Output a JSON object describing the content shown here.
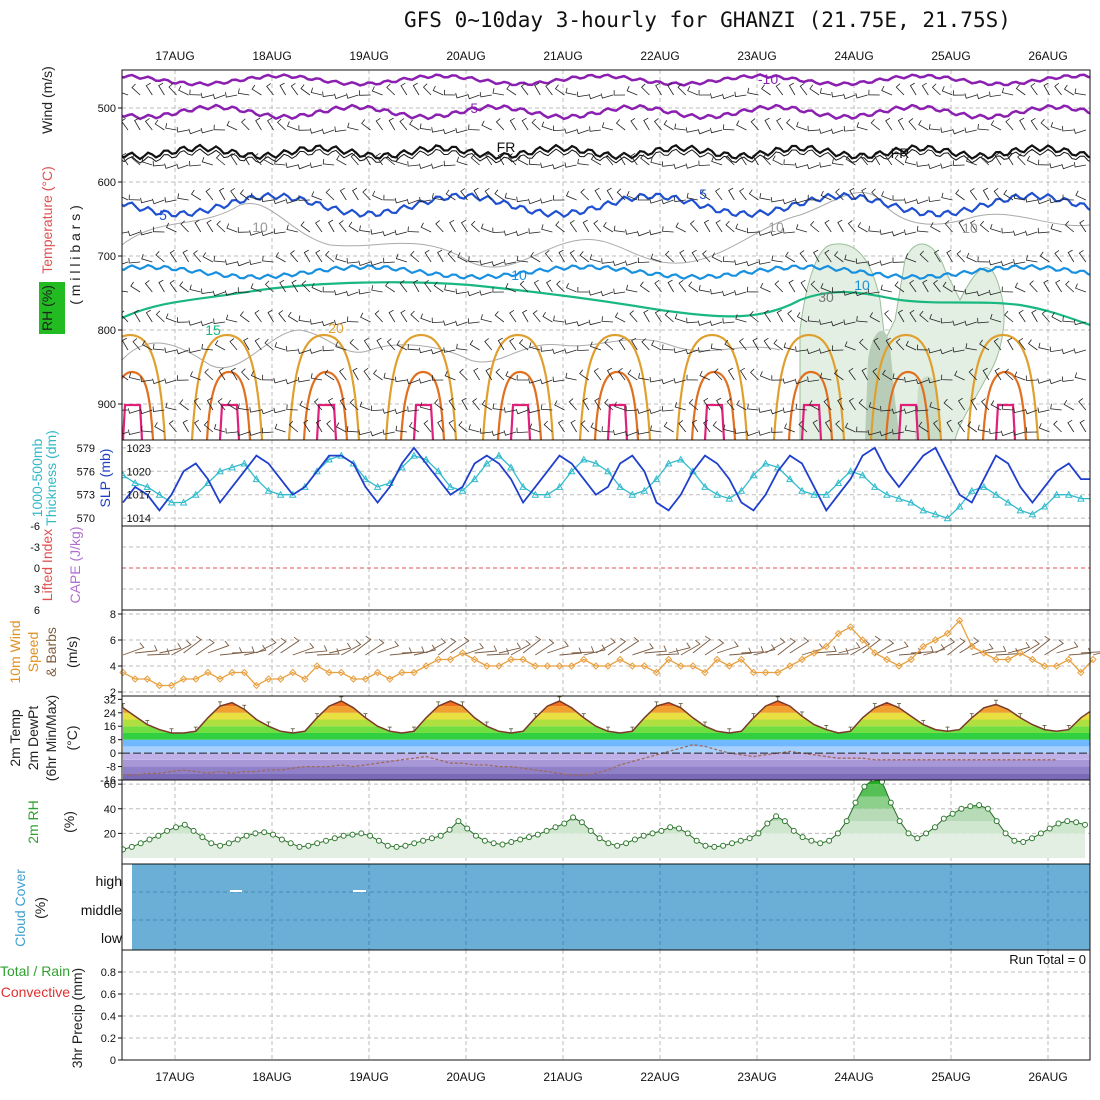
{
  "title": "GFS 0~10day 3-hourly for GHANZI (21.75E, 21.75S)",
  "dates": [
    "17AUG",
    "18AUG",
    "19AUG",
    "20AUG",
    "21AUG",
    "22AUG",
    "23AUG",
    "24AUG",
    "25AUG",
    "26AUG"
  ],
  "panels": {
    "upper": {
      "ylabels": [
        {
          "text": "Wind (m/s)",
          "color": "#222222"
        },
        {
          "text": "Temperature (°C)",
          "color": "#e05050"
        },
        {
          "text": "RH (%)",
          "color": "#222222"
        },
        {
          "text": "( m i l l i b a r s )",
          "color": "#222222"
        }
      ],
      "ticks": [
        "500",
        "600",
        "700",
        "800",
        "900"
      ],
      "contour_labels": [
        {
          "text": "-10",
          "color": "#8a1fb0"
        },
        {
          "text": "-5",
          "color": "#8a1fb0"
        },
        {
          "text": "FR",
          "color": "#111111"
        },
        {
          "text": "FR",
          "color": "#111111"
        },
        {
          "text": "5",
          "color": "#1f50d0"
        },
        {
          "text": "5",
          "color": "#1f50d0"
        },
        {
          "text": "10",
          "color": "#1890e0"
        },
        {
          "text": "10",
          "color": "#1890e0"
        },
        {
          "text": "15",
          "color": "#18b880"
        },
        {
          "text": "20",
          "color": "#e0a030"
        },
        {
          "text": "10",
          "color": "#999999"
        },
        {
          "text": "10",
          "color": "#999999"
        },
        {
          "text": "10",
          "color": "#999999"
        },
        {
          "text": "30",
          "color": "#777777"
        }
      ]
    },
    "slp": {
      "ylabels": [
        {
          "text": "1000-500mb",
          "color": "#30b8c8"
        },
        {
          "text": "Thickness (dm)",
          "color": "#30b8c8"
        },
        {
          "text": "SLP (mb)",
          "color": "#2040c0"
        }
      ],
      "left_ticks": [
        "579",
        "576",
        "573",
        "570"
      ],
      "right_ticks": [
        "1023",
        "1020",
        "1017",
        "1014"
      ]
    },
    "lifted": {
      "ylabels": [
        {
          "text": "Lifted Index",
          "color": "#e05050"
        },
        {
          "text": "CAPE (J/kg)",
          "color": "#b070d0"
        }
      ],
      "ticks": [
        "-6",
        "-3",
        "0",
        "3",
        "6"
      ]
    },
    "wind10": {
      "ylabels": [
        {
          "text": "10m Wind",
          "color": "#e09020"
        },
        {
          "text": "Speed",
          "color": "#e09020"
        },
        {
          "text": "& Barbs",
          "color": "#806040"
        },
        {
          "text": "(m/s)",
          "color": "#222222"
        }
      ],
      "ticks": [
        "8",
        "6",
        "4",
        "2"
      ]
    },
    "temp2m": {
      "ylabels": [
        {
          "text": "2m Temp",
          "color": "#222222"
        },
        {
          "text": "2m DewPt",
          "color": "#222222"
        },
        {
          "text": "(6hr Min/Max)",
          "color": "#222222"
        },
        {
          "text": "(°C)",
          "color": "#222222"
        }
      ],
      "ticks": [
        "32",
        "24",
        "16",
        "8",
        "0",
        "-8",
        "-16"
      ]
    },
    "rh2m": {
      "ylabels": [
        {
          "text": "2m RH",
          "color": "#30a030"
        },
        {
          "text": "(%)",
          "color": "#222222"
        }
      ],
      "ticks": [
        "60",
        "40",
        "20"
      ]
    },
    "cloud": {
      "ylabels": [
        {
          "text": "Cloud Cover",
          "color": "#40a0d0"
        },
        {
          "text": "(%)",
          "color": "#222222"
        }
      ],
      "levels": [
        "high",
        "middle",
        "low"
      ]
    },
    "precip": {
      "ylabels": [
        {
          "text": "Total / Rain",
          "color": "#30a030"
        },
        {
          "text": "Convective",
          "color": "#e03030"
        },
        {
          "text": "3hr Precip (mm)",
          "color": "#222222"
        }
      ],
      "ticks": [
        "0.8",
        "0.6",
        "0.4",
        "0.2",
        "0"
      ],
      "run_total": "Run Total = 0"
    }
  },
  "colors": {
    "slp": "#1f3fcc",
    "thickness": "#33bbcc",
    "wind10": "#e8a040",
    "barb": "#7a5a40",
    "rh": "#3a9a3a",
    "cloud": "#6baed6",
    "li_zero": "#e05050",
    "grid": "#bbbbbb"
  },
  "chart_data": [
    {
      "type": "line",
      "title": "3hr Precip (mm)",
      "x": [
        "17AUG",
        "18AUG",
        "19AUG",
        "20AUG",
        "21AUG",
        "22AUG",
        "23AUG",
        "24AUG",
        "25AUG",
        "26AUG"
      ],
      "series": [
        {
          "name": "Total / Rain",
          "values": [
            0,
            0,
            0,
            0,
            0,
            0,
            0,
            0,
            0,
            0
          ]
        }
      ],
      "ylim": [
        0,
        1
      ]
    },
    {
      "type": "line",
      "title": "SLP (mb)",
      "x_step_hours": 3,
      "series": [
        {
          "name": "SLP (mb)",
          "values": [
            1016,
            1018,
            1017,
            1015,
            1017,
            1020,
            1021,
            1019,
            1016,
            1018,
            1020,
            1022,
            1021,
            1019,
            1017,
            1018,
            1020,
            1022,
            1022,
            1021,
            1018,
            1016,
            1018,
            1021,
            1023,
            1021,
            1019,
            1017,
            1018,
            1021,
            1022,
            1021,
            1019,
            1016,
            1018,
            1020,
            1022,
            1021,
            1019,
            1017,
            1018,
            1021,
            1022,
            1020,
            1016,
            1015,
            1017,
            1020,
            1022,
            1021,
            1019,
            1016,
            1015,
            1017,
            1020,
            1022,
            1021,
            1018,
            1015,
            1017,
            1019,
            1022,
            1023,
            1020,
            1018,
            1020,
            1022,
            1023,
            1020,
            1017,
            1016,
            1019,
            1022,
            1021,
            1018,
            1016,
            1018,
            1020,
            1021,
            1019,
            1019
          ]
        }
      ],
      "ylim": [
        1013,
        1024
      ]
    },
    {
      "type": "line",
      "title": "1000-500mb Thickness (dm)",
      "x_step_hours": 3,
      "series": [
        {
          "name": "Thickness (dm)",
          "values": [
            575.5,
            574.5,
            574,
            573,
            572,
            572,
            573,
            574.5,
            576,
            576.5,
            577,
            575,
            573.5,
            573,
            573,
            574,
            576,
            577.5,
            578,
            577,
            575,
            574,
            574.5,
            576.5,
            578,
            577.5,
            576,
            574,
            573.5,
            575,
            577,
            578,
            576.5,
            574,
            573,
            573,
            574,
            576,
            577.5,
            577,
            576,
            574,
            573,
            573.5,
            575,
            577,
            577.5,
            576,
            574,
            573,
            572.5,
            573.5,
            575.5,
            577,
            576.5,
            575,
            573.5,
            573,
            573,
            574.5,
            576,
            575.5,
            574,
            573,
            572.5,
            572,
            571,
            570.5,
            570,
            571.5,
            573.5,
            574,
            573,
            572,
            571,
            570.5,
            571.5,
            573,
            573,
            572.5,
            572.5
          ]
        }
      ],
      "ylim": [
        569,
        580
      ]
    },
    {
      "type": "line",
      "title": "10m Wind Speed (m/s)",
      "x_step_hours": 3,
      "series": [
        {
          "name": "10m Wind Speed",
          "values": [
            3.5,
            3,
            3,
            2.5,
            2.5,
            3,
            3,
            3.5,
            3,
            3.5,
            3.5,
            2.5,
            3,
            3,
            3.5,
            3,
            4,
            3.5,
            3.5,
            3,
            3,
            3.5,
            3,
            3.5,
            3.5,
            4,
            4.5,
            4.5,
            5,
            4.5,
            4,
            4,
            4.5,
            4.5,
            4,
            4,
            4,
            4,
            4.5,
            4,
            4,
            4.5,
            4,
            4,
            3.5,
            4.5,
            4,
            4,
            3.5,
            4.5,
            4,
            4.5,
            3.5,
            3.5,
            3.5,
            4,
            4.5,
            5,
            5.5,
            6.5,
            7,
            6,
            5,
            4.5,
            4,
            4.5,
            5.5,
            6,
            6.5,
            7.5,
            5.5,
            5,
            4.5,
            4.5,
            5,
            4.5,
            4,
            4,
            4.5,
            3.5,
            4.5
          ]
        }
      ],
      "ylim": [
        2,
        8
      ]
    },
    {
      "type": "area",
      "title": "2m RH (%)",
      "x_step_hours": 3,
      "series": [
        {
          "name": "2m RH",
          "values": [
            7,
            9,
            12,
            15,
            18,
            22,
            25,
            27,
            22,
            17,
            12,
            10,
            12,
            15,
            18,
            20,
            21,
            19,
            15,
            12,
            9,
            10,
            12,
            14,
            16,
            18,
            19,
            20,
            18,
            14,
            10,
            9,
            10,
            12,
            14,
            16,
            18,
            23,
            30,
            24,
            18,
            14,
            12,
            11,
            13,
            15,
            17,
            19,
            22,
            25,
            28,
            33,
            29,
            22,
            16,
            12,
            10,
            12,
            15,
            18,
            20,
            22,
            25,
            24,
            20,
            14,
            10,
            9,
            10,
            12,
            14,
            16,
            20,
            28,
            34,
            30,
            22,
            17,
            14,
            12,
            14,
            20,
            30,
            45,
            58,
            64,
            62,
            45,
            30,
            20,
            16,
            20,
            25,
            32,
            36,
            40,
            42,
            43,
            40,
            30,
            20,
            14,
            13,
            16,
            20,
            24,
            28,
            30,
            29,
            27
          ]
        }
      ],
      "ylim": [
        0,
        65
      ]
    },
    {
      "type": "area",
      "title": "2m Temp (°C)",
      "x_step_hours": 3,
      "series": [
        {
          "name": "2m Temp",
          "values": [
            27,
            22,
            17,
            14,
            12,
            12,
            13,
            21,
            28,
            30,
            26,
            20,
            16,
            13,
            12,
            13,
            21,
            28,
            31,
            27,
            21,
            16,
            13,
            12,
            13,
            21,
            28,
            31,
            28,
            21,
            16,
            13,
            12,
            13,
            21,
            28,
            31,
            27,
            21,
            16,
            13,
            12,
            13,
            21,
            28,
            30,
            27,
            21,
            16,
            13,
            12,
            13,
            21,
            28,
            31,
            28,
            22,
            17,
            14,
            12,
            13,
            21,
            27,
            30,
            27,
            22,
            17,
            14,
            13,
            14,
            21,
            27,
            29,
            26,
            21,
            17,
            14,
            13,
            14,
            21,
            26,
            29,
            27,
            22,
            17,
            14,
            13,
            13
          ]
        },
        {
          "name": "2m DewPt",
          "values": [
            -13,
            -13,
            -12,
            -12,
            -11,
            -10,
            -11,
            -12,
            -11,
            -12,
            -11,
            -11,
            -10,
            -10,
            -9,
            -8,
            -8,
            -8,
            -7,
            -8,
            -7,
            -6,
            -5,
            -4,
            -3,
            -2,
            -4,
            -6,
            -6,
            -7,
            -7,
            -8,
            -8,
            -9,
            -10,
            -11,
            -12,
            -13,
            -13,
            -12,
            -10,
            -7,
            -5,
            -3,
            -1,
            1,
            3,
            5,
            4,
            2,
            0,
            -1,
            -2,
            -1,
            0,
            1,
            0,
            -1,
            -2,
            -3,
            -3,
            -3,
            -4,
            -4,
            -4,
            -4,
            -4,
            -4,
            -4,
            -4,
            -4,
            -4,
            -4,
            -4,
            -4,
            -4,
            -4,
            -4
          ]
        }
      ],
      "ylim": [
        -16,
        34
      ]
    }
  ]
}
